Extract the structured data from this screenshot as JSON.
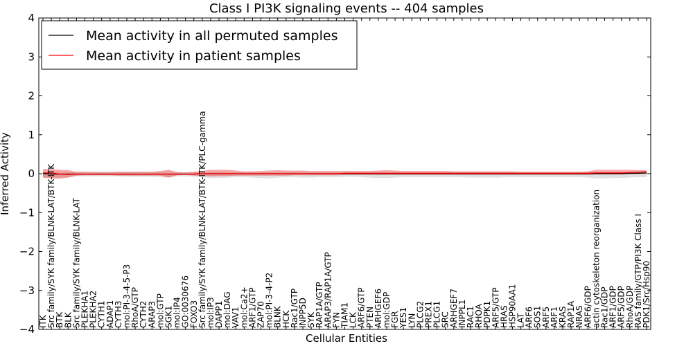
{
  "chart_data": {
    "type": "line",
    "title": "Class I PI3K signaling events -- 404 samples",
    "xlabel": "Cellular Entities",
    "ylabel": "Inferred Activity",
    "ylim": [
      -4,
      4
    ],
    "yticks": [
      -4,
      -3,
      -2,
      -1,
      0,
      1,
      2,
      3,
      4
    ],
    "ytick_labels": [
      "−4",
      "−3",
      "−2",
      "−1",
      "0",
      "1",
      "2",
      "3",
      "4"
    ],
    "legend": {
      "position": "top-left",
      "entries": [
        {
          "label": "Mean activity in all permuted samples",
          "color": "#000000"
        },
        {
          "label": "Mean activity in patient samples",
          "color": "#ff0000"
        }
      ]
    },
    "categories": [
      "ITK",
      "Src family/SYK family/BLNK-LAT/BTK-ITK",
      "BTK",
      "BLK",
      "Src family/SYK family/BLNK-LAT",
      "PLEKHA1",
      "PLEKHA2",
      "CYTH1",
      "ADAP1",
      "CYTH3",
      "mol:PI-3-4-5-P3",
      "RhoA/GTP",
      "CYTH2",
      "ARAP3",
      "mol:GTP",
      "SGK1",
      "mol:IP4",
      "GO:0030676",
      "FOXO3",
      "Src family/SYK family/BLNK-LAT/BTK-ITK/PLC-gamma",
      "mol:IP3",
      "DAPP1",
      "mol:DAG",
      "VAV1",
      "mol:Ca2+",
      "ARF1/GTP",
      "ZAP70",
      "mol:PI-3-4-P2",
      "BLNK",
      "HCK",
      "Rac1/GTP",
      "INPP5D",
      "SYK",
      "RAP1A/GTP",
      "ARAP3/RAP1A/GTP",
      "FYN",
      "TIAM1",
      "LCK",
      "ARF6/GTP",
      "PTEN",
      "ARHGEF6",
      "mol:GDP",
      "FGR",
      "YES1",
      "LYN",
      "PLCG2",
      "PREX1",
      "PLCG1",
      "SRC",
      "ARHGEF7",
      "INPPL1",
      "RAC1",
      "RHOA",
      "PDPK1",
      "ARF5/GTP",
      "HRAS",
      "HSP90AA1",
      "LAT",
      "ARF6",
      "SOS1",
      "ARF5",
      "ARF1",
      "KRAS",
      "RAP1A",
      "NRAS",
      "ARF6/GDP",
      "actin cytoskeleton reorganization",
      "Rac1/GDP",
      "ARF1/GDP",
      "ARF5/GDP",
      "RhoA/GDP",
      "RAS family/GTP/PI3K Class I",
      "PDK1/Src/Hsp90"
    ],
    "series": [
      {
        "name": "Mean activity in patient samples",
        "color": "#ff0000",
        "values": [
          0.02,
          0.02,
          -0.01,
          -0.02,
          -0.01,
          -0.01,
          -0.01,
          -0.01,
          -0.01,
          -0.01,
          -0.01,
          -0.01,
          -0.01,
          -0.01,
          -0.01,
          -0.01,
          -0.01,
          -0.01,
          -0.01,
          0.0,
          0.0,
          0.0,
          0.0,
          0.0,
          0.0,
          0.0,
          0.0,
          0.0,
          0.0,
          0.0,
          0.0,
          0.0,
          0.0,
          0.0,
          0.0,
          0.0,
          0.01,
          0.01,
          0.01,
          0.01,
          0.01,
          0.01,
          0.01,
          0.01,
          0.01,
          0.01,
          0.01,
          0.01,
          0.01,
          0.01,
          0.01,
          0.01,
          0.01,
          0.01,
          0.01,
          0.01,
          0.01,
          0.01,
          0.01,
          0.01,
          0.01,
          0.01,
          0.01,
          0.01,
          0.01,
          0.01,
          0.02,
          0.02,
          0.02,
          0.02,
          0.03,
          0.04,
          0.05
        ],
        "band_upper": [
          0.12,
          0.12,
          0.1,
          0.09,
          0.05,
          0.05,
          0.04,
          0.04,
          0.04,
          0.05,
          0.05,
          0.05,
          0.05,
          0.05,
          0.07,
          0.1,
          0.04,
          0.03,
          0.05,
          0.07,
          0.1,
          0.1,
          0.1,
          0.08,
          0.06,
          0.06,
          0.07,
          0.08,
          0.09,
          0.08,
          0.08,
          0.08,
          0.07,
          0.07,
          0.07,
          0.07,
          0.07,
          0.07,
          0.07,
          0.07,
          0.08,
          0.09,
          0.08,
          0.07,
          0.07,
          0.07,
          0.07,
          0.07,
          0.07,
          0.06,
          0.06,
          0.06,
          0.06,
          0.06,
          0.06,
          0.06,
          0.06,
          0.05,
          0.05,
          0.05,
          0.05,
          0.05,
          0.05,
          0.05,
          0.05,
          0.06,
          0.1,
          0.1,
          0.1,
          0.1,
          0.1,
          0.09,
          0.09
        ],
        "band_lower": [
          -0.1,
          -0.12,
          -0.13,
          -0.1,
          -0.05,
          -0.04,
          -0.04,
          -0.04,
          -0.04,
          -0.05,
          -0.05,
          -0.05,
          -0.05,
          -0.05,
          -0.05,
          -0.1,
          -0.04,
          -0.03,
          -0.05,
          -0.06,
          -0.07,
          -0.06,
          -0.06,
          -0.05,
          -0.05,
          -0.05,
          -0.05,
          -0.05,
          -0.05,
          -0.05,
          -0.04,
          -0.04,
          -0.04,
          -0.04,
          -0.04,
          -0.04,
          -0.03,
          -0.03,
          -0.03,
          -0.03,
          -0.03,
          -0.03,
          -0.03,
          -0.03,
          -0.03,
          -0.03,
          -0.03,
          -0.03,
          -0.03,
          -0.03,
          -0.03,
          -0.03,
          -0.03,
          -0.03,
          -0.03,
          -0.03,
          -0.03,
          -0.03,
          -0.03,
          -0.03,
          -0.03,
          -0.03,
          -0.03,
          -0.03,
          -0.03,
          -0.03,
          -0.02,
          -0.02,
          -0.02,
          -0.02,
          -0.01,
          -0.01,
          0.0
        ]
      },
      {
        "name": "Mean activity in all permuted samples",
        "color": "#000000",
        "values": [
          0.0,
          -0.01,
          -0.01,
          -0.01,
          -0.01,
          -0.01,
          -0.01,
          -0.01,
          -0.01,
          -0.01,
          -0.01,
          -0.01,
          -0.01,
          -0.01,
          -0.01,
          -0.01,
          -0.01,
          -0.01,
          -0.01,
          0.0,
          0.0,
          0.0,
          0.0,
          0.0,
          0.0,
          0.0,
          0.0,
          0.0,
          0.0,
          0.0,
          0.0,
          0.0,
          0.0,
          0.0,
          0.0,
          0.0,
          0.0,
          0.0,
          0.0,
          0.0,
          0.0,
          0.0,
          0.0,
          0.0,
          0.0,
          0.0,
          0.0,
          0.0,
          0.0,
          0.0,
          0.0,
          0.0,
          0.0,
          0.0,
          0.0,
          0.0,
          0.0,
          0.0,
          0.0,
          0.0,
          0.0,
          0.0,
          0.0,
          0.0,
          0.0,
          0.0,
          0.0,
          0.0,
          0.0,
          0.0,
          0.01,
          0.01,
          0.02
        ],
        "band_upper": [
          0.04,
          0.04,
          0.04,
          0.04,
          0.04,
          0.04,
          0.04,
          0.04,
          0.04,
          0.04,
          0.04,
          0.04,
          0.04,
          0.04,
          0.04,
          0.04,
          0.04,
          0.04,
          0.04,
          0.04,
          0.04,
          0.04,
          0.04,
          0.04,
          0.04,
          0.04,
          0.04,
          0.04,
          0.04,
          0.04,
          0.04,
          0.04,
          0.04,
          0.04,
          0.04,
          0.04,
          0.04,
          0.04,
          0.04,
          0.04,
          0.04,
          0.04,
          0.04,
          0.04,
          0.04,
          0.04,
          0.04,
          0.04,
          0.04,
          0.04,
          0.04,
          0.04,
          0.04,
          0.04,
          0.04,
          0.04,
          0.04,
          0.04,
          0.04,
          0.04,
          0.04,
          0.04,
          0.04,
          0.04,
          0.04,
          0.04,
          0.04,
          0.04,
          0.04,
          0.04,
          0.05,
          0.05,
          0.05
        ],
        "band_lower": [
          -0.1,
          -0.1,
          -0.1,
          -0.09,
          -0.07,
          -0.07,
          -0.07,
          -0.07,
          -0.07,
          -0.07,
          -0.08,
          -0.08,
          -0.08,
          -0.08,
          -0.09,
          -0.1,
          -0.07,
          -0.07,
          -0.08,
          -0.09,
          -0.11,
          -0.11,
          -0.1,
          -0.09,
          -0.09,
          -0.1,
          -0.11,
          -0.12,
          -0.1,
          -0.09,
          -0.09,
          -0.1,
          -0.1,
          -0.09,
          -0.09,
          -0.09,
          -0.08,
          -0.08,
          -0.09,
          -0.1,
          -0.11,
          -0.11,
          -0.1,
          -0.09,
          -0.09,
          -0.09,
          -0.09,
          -0.09,
          -0.09,
          -0.09,
          -0.09,
          -0.1,
          -0.1,
          -0.1,
          -0.1,
          -0.09,
          -0.09,
          -0.09,
          -0.09,
          -0.09,
          -0.09,
          -0.09,
          -0.09,
          -0.09,
          -0.09,
          -0.1,
          -0.12,
          -0.12,
          -0.11,
          -0.11,
          -0.1,
          -0.09,
          -0.09
        ]
      }
    ]
  }
}
